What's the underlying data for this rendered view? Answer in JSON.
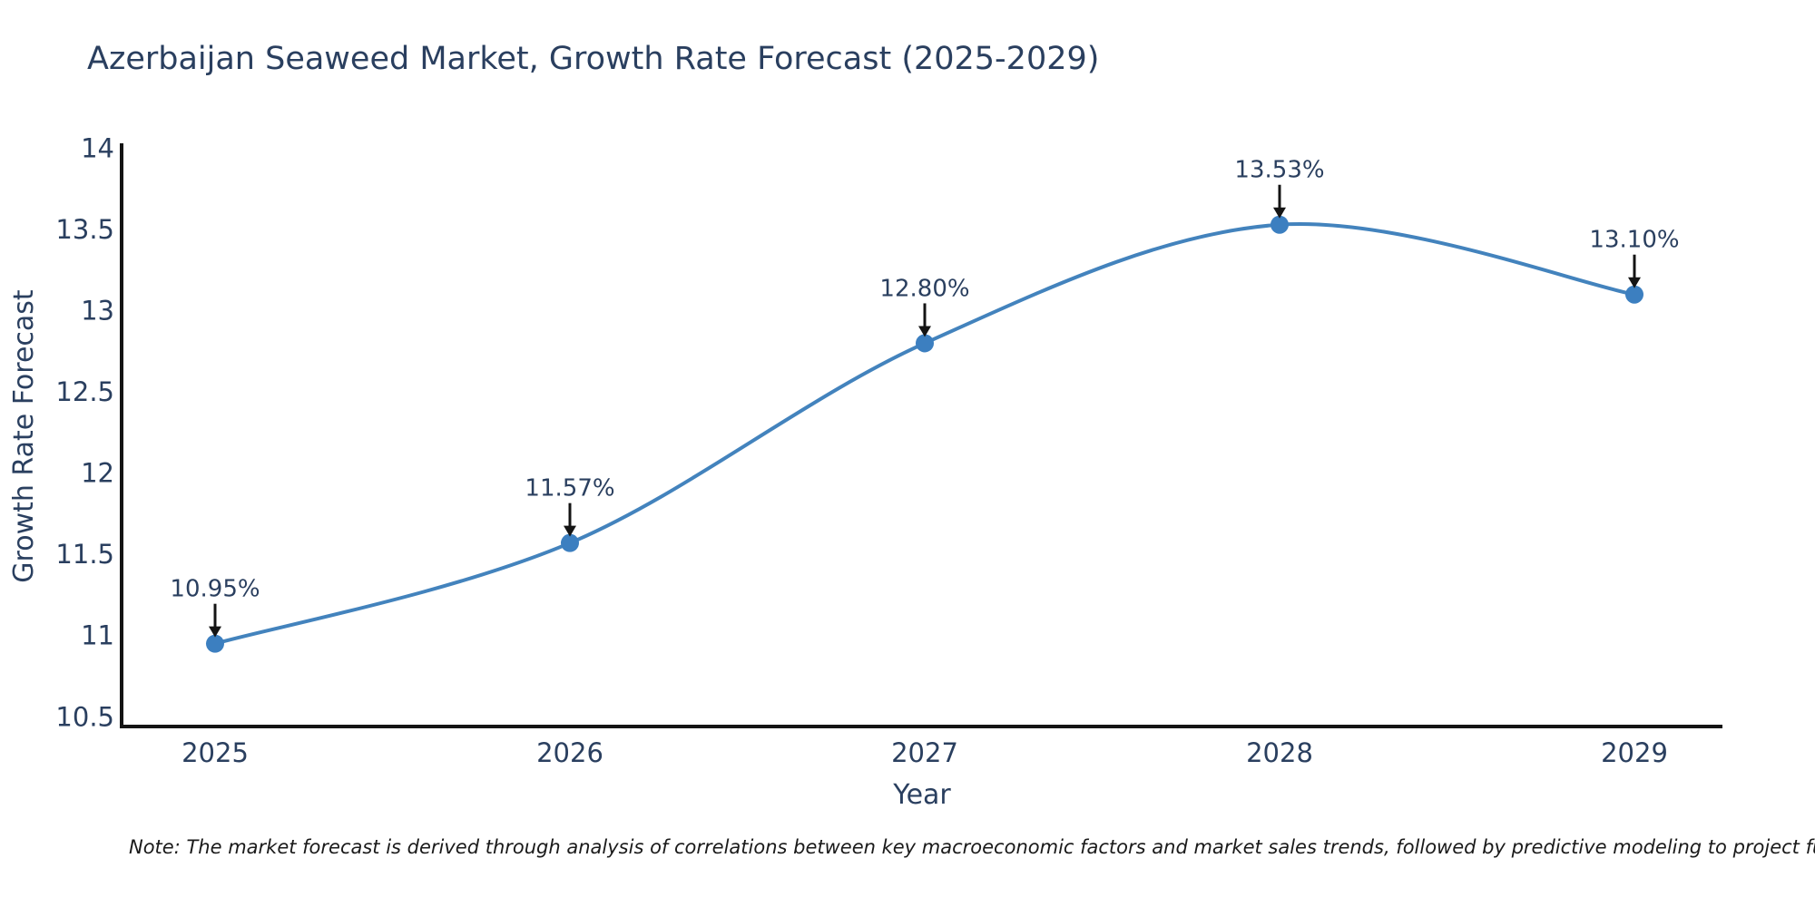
{
  "chart_data": {
    "type": "line",
    "title": "Azerbaijan Seaweed Market, Growth Rate Forecast (2025-2029)",
    "xlabel": "Year",
    "ylabel": "Growth Rate Forecast",
    "categories": [
      "2025",
      "2026",
      "2027",
      "2028",
      "2029"
    ],
    "values": [
      10.95,
      11.57,
      12.8,
      13.53,
      13.1
    ],
    "point_labels": [
      "10.95%",
      "11.57%",
      "12.80%",
      "13.53%",
      "13.10%"
    ],
    "series_name": "Growth Rate Forecast",
    "line_shape": "spline",
    "yticks": [
      10.5,
      11,
      11.5,
      12,
      12.5,
      13,
      13.5,
      14
    ],
    "ytick_labels": [
      "10.5",
      "11",
      "11.5",
      "12",
      "12.5",
      "13",
      "13.5",
      "14"
    ],
    "ylim": [
      10.44,
      14.02
    ],
    "grid": false,
    "legend_position": "none",
    "note": "Note: The market forecast is derived through analysis of correlations between key macroeconomic factors and market sales trends, followed by predictive modeling to project future sales.",
    "colors": {
      "line": "#4383bd",
      "marker": "#3c7fc0",
      "axis": "#141414",
      "arrow": "#141414",
      "text": "#2a3f5f",
      "note_text": "#1a1a1a",
      "background": "#ffffff"
    }
  }
}
